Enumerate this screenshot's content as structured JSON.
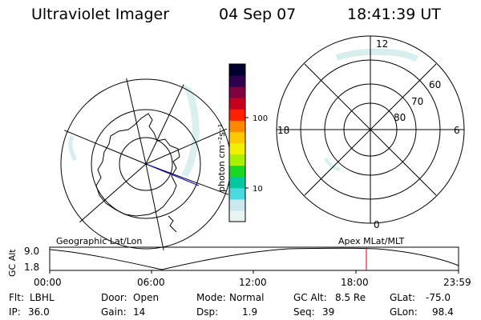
{
  "header": {
    "instrument": "Ultraviolet Imager",
    "date": "04 Sep 07",
    "time": "18:41:39 UT"
  },
  "colorbar": {
    "unit": "photon cm⁻²s⁻¹",
    "tick_labels": [
      "100",
      "10"
    ],
    "ticks": [
      100,
      10
    ],
    "scale": "log",
    "colors": [
      "#e8f4f4",
      "#c8e8ec",
      "#4cd8e0",
      "#00c8a0",
      "#18d820",
      "#a8f000",
      "#f0f000",
      "#ffc800",
      "#ff8800",
      "#ff2000",
      "#c80020",
      "#800040",
      "#300050",
      "#000030"
    ]
  },
  "left_map": {
    "label": "Geographic Lat/Lon"
  },
  "right_map": {
    "label": "Apex MLat/MLT",
    "mlt_labels": [
      "12",
      "6",
      "0",
      "18"
    ],
    "mlat_labels": [
      "60",
      "70",
      "80"
    ]
  },
  "timeline": {
    "ylabel": "GC Alt",
    "y_ticks": [
      "9.0",
      "1.8"
    ],
    "x_ticks": [
      "00:00",
      "06:00",
      "12:00",
      "18:00",
      "23:59"
    ],
    "current_time_marker": "18:41:39",
    "marker_color": "#cc0000"
  },
  "status": {
    "filter_label": "Flt:",
    "filter_value": "LBHL",
    "door_label": "Door:",
    "door_value": "Open",
    "mode_label": "Mode:",
    "mode_value": "Normal",
    "gcalt_label": "GC Alt:",
    "gcalt_value": "8.5 Re",
    "glat_label": "GLat:",
    "glat_value": "-75.0",
    "ip_label": "IP:",
    "ip_value": "36.0",
    "gain_label": "Gain:",
    "gain_value": "14",
    "dsp_label": "Dsp:",
    "dsp_value": "1.9",
    "seq_label": "Seq:",
    "seq_value": "39",
    "glon_label": "GLon:",
    "glon_value": "98.4"
  }
}
